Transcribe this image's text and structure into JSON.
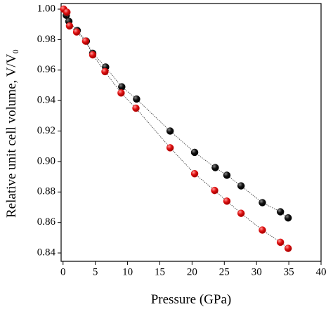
{
  "chart_data": {
    "type": "scatter",
    "xlabel": "Pressure (GPa)",
    "ylabel": "Relative unit cell volume, V/V₀",
    "xlim": [
      -0.3,
      40
    ],
    "ylim": [
      0.8345,
      1.0037
    ],
    "xticks": [
      0,
      5,
      10,
      15,
      20,
      25,
      30,
      35,
      40
    ],
    "yticks": [
      0.84,
      0.86,
      0.88,
      {
        "value": 0.9,
        "label": "0.90"
      },
      0.92,
      0.94,
      0.96,
      0.98,
      {
        "value": 1.0,
        "label": "1.00"
      }
    ],
    "series": [
      {
        "color": "#111111",
        "x": [
          0.5,
          0.9,
          2.2,
          3.6,
          4.6,
          6.6,
          9.1,
          11.4,
          16.6,
          20.4,
          23.6,
          25.4,
          27.6,
          30.9,
          33.7,
          34.9
        ],
        "values": [
          0.996,
          0.992,
          0.986,
          0.979,
          0.971,
          0.962,
          0.949,
          0.941,
          0.92,
          0.906,
          0.896,
          0.891,
          0.884,
          0.873,
          0.867,
          0.863
        ]
      },
      {
        "color": "#e01010",
        "x": [
          0.1,
          0.6,
          1.0,
          2.1,
          3.5,
          4.6,
          6.5,
          9.0,
          11.3,
          16.6,
          20.4,
          23.5,
          25.4,
          27.6,
          30.9,
          33.7,
          34.9
        ],
        "values": [
          1.0,
          0.998,
          0.989,
          0.985,
          0.979,
          0.97,
          0.959,
          0.945,
          0.935,
          0.909,
          0.892,
          0.881,
          0.874,
          0.866,
          0.855,
          0.847,
          0.843
        ]
      }
    ]
  }
}
